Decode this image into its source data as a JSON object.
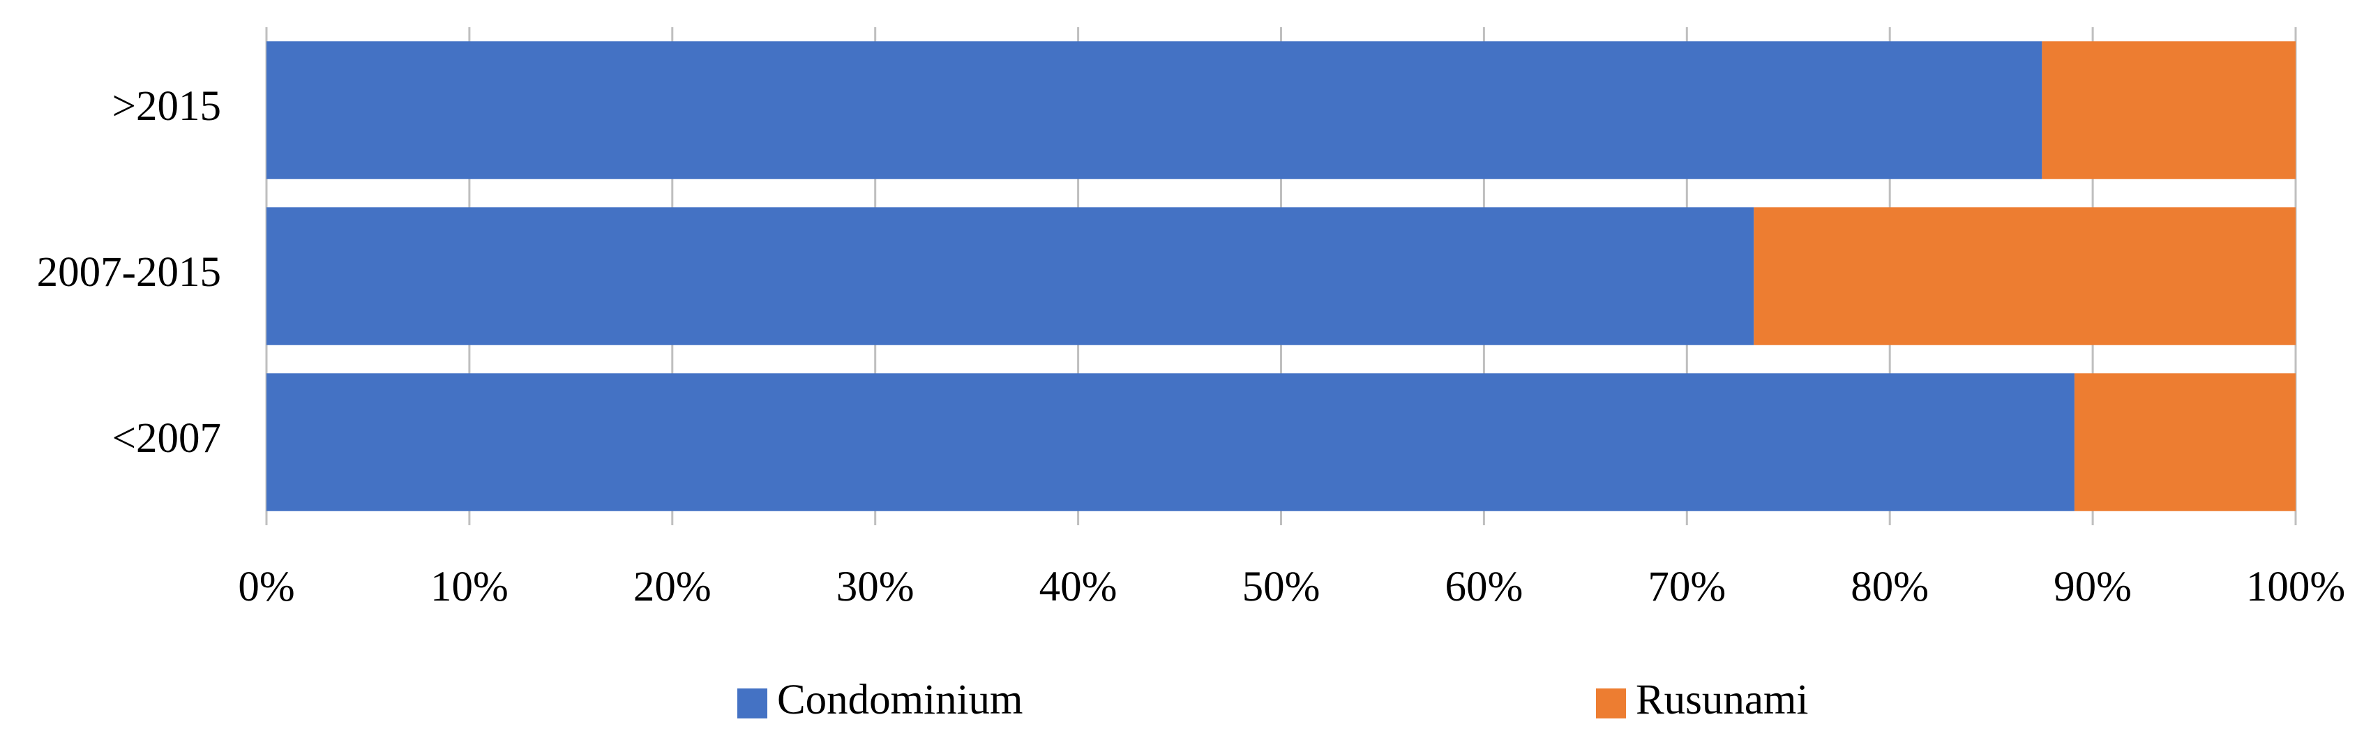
{
  "chart_data": {
    "type": "stacked_bar_horizontal",
    "categories": [
      ">2015",
      "2007-2015",
      "<2007"
    ],
    "series": [
      {
        "name": "Condominium",
        "color": "#4472c4",
        "values": [
          87.5,
          73.3,
          89.1
        ]
      },
      {
        "name": "Rusunami",
        "color": "#ed7d31",
        "values": [
          12.5,
          26.7,
          10.9
        ]
      }
    ],
    "xlim": [
      0,
      100
    ],
    "xticks": [
      {
        "value": 0,
        "label": "0%"
      },
      {
        "value": 10,
        "label": "10%"
      },
      {
        "value": 20,
        "label": "20%"
      },
      {
        "value": 30,
        "label": "30%"
      },
      {
        "value": 40,
        "label": "40%"
      },
      {
        "value": 50,
        "label": "50%"
      },
      {
        "value": 60,
        "label": "60%"
      },
      {
        "value": 70,
        "label": "70%"
      },
      {
        "value": 80,
        "label": "80%"
      },
      {
        "value": 90,
        "label": "90%"
      },
      {
        "value": 100,
        "label": "100%"
      }
    ],
    "grid": true,
    "legend": "bottom"
  }
}
